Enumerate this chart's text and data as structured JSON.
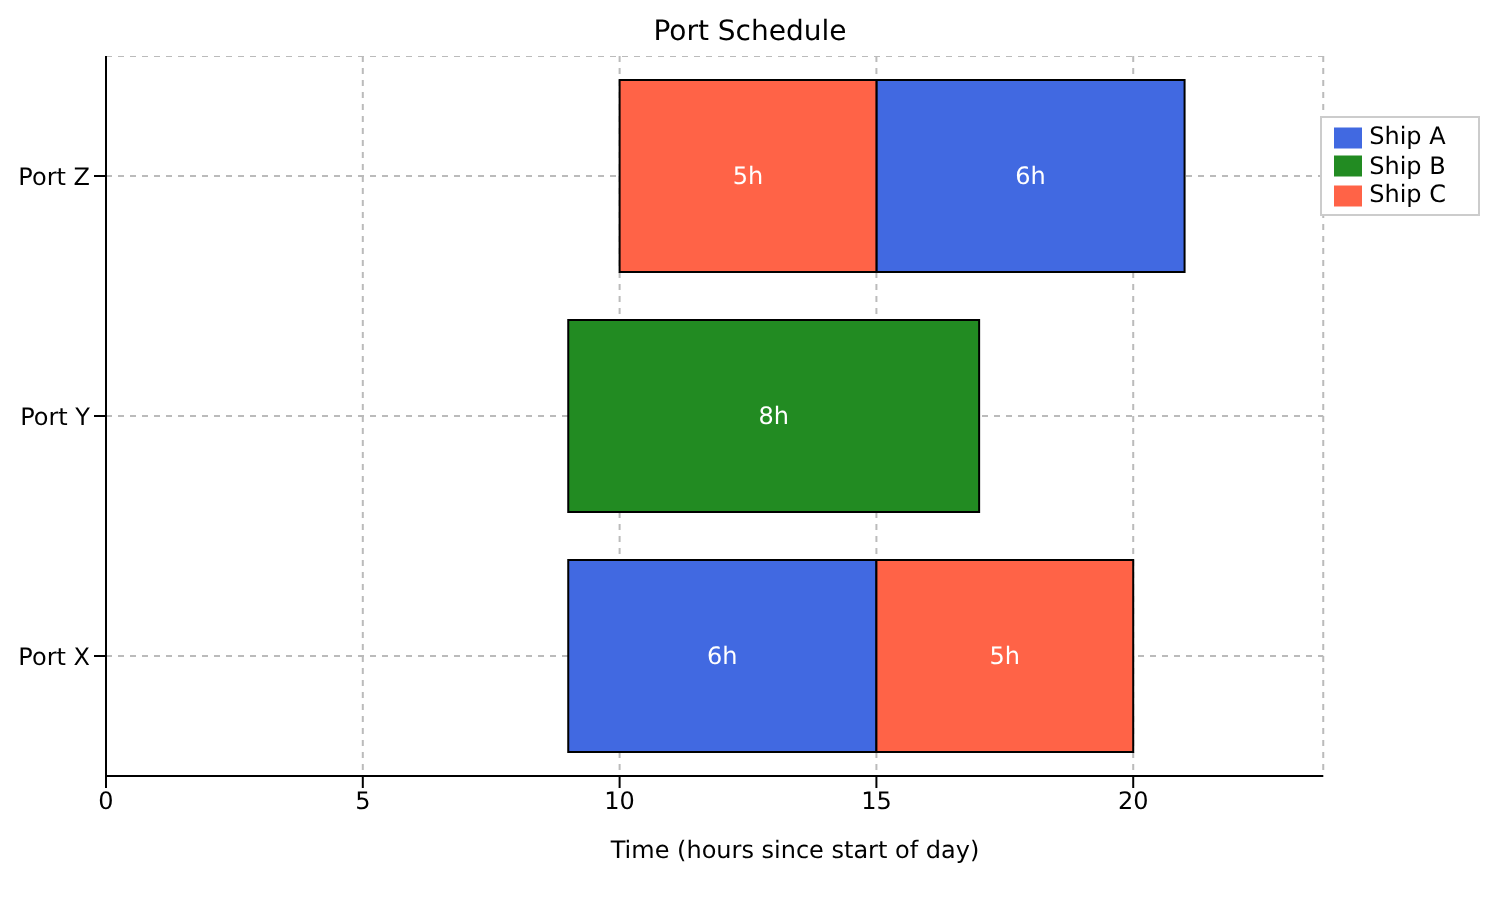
{
  "chart_data": {
    "type": "bar",
    "orientation": "horizontal",
    "title": "Port Schedule",
    "xlabel": "Time (hours since start of day)",
    "categories": [
      "Port Z",
      "Port Y",
      "Port X"
    ],
    "series": [
      {
        "name": "Ship A",
        "color": "#4169e1",
        "values": [
          6,
          null,
          6
        ],
        "base": [
          15,
          null,
          9
        ],
        "value_labels": [
          "6h",
          null,
          "6h"
        ]
      },
      {
        "name": "Ship B",
        "color": "#228b22",
        "values": [
          null,
          8,
          null
        ],
        "base": [
          null,
          9,
          null
        ],
        "value_labels": [
          null,
          "8h",
          null
        ]
      },
      {
        "name": "Ship C",
        "color": "#ff6347",
        "values": [
          5,
          null,
          5
        ],
        "base": [
          10,
          null,
          15
        ],
        "value_labels": [
          "5h",
          null,
          "5h"
        ]
      }
    ],
    "xlim": [
      0,
      23.7
    ],
    "xticks": [
      0,
      5,
      10,
      15,
      20
    ],
    "grid": true,
    "legend": "top right"
  }
}
